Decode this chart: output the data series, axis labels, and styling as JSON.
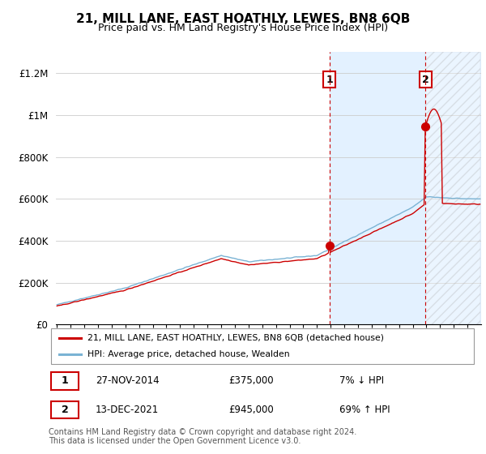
{
  "title": "21, MILL LANE, EAST HOATHLY, LEWES, BN8 6QB",
  "subtitle": "Price paid vs. HM Land Registry's House Price Index (HPI)",
  "footnote": "Contains HM Land Registry data © Crown copyright and database right 2024.\nThis data is licensed under the Open Government Licence v3.0.",
  "ylim": [
    0,
    1300000
  ],
  "yticks": [
    0,
    200000,
    400000,
    600000,
    800000,
    1000000,
    1200000
  ],
  "ytick_labels": [
    "£0",
    "£200K",
    "£400K",
    "£600K",
    "£800K",
    "£1M",
    "£1.2M"
  ],
  "x_start_year": 1995,
  "x_end_year": 2025,
  "hpi_color": "#7ab3d4",
  "price_color": "#cc0000",
  "shade_color": "#ddeeff",
  "transaction1": {
    "year_idx": 239,
    "price": 375000,
    "label": "1",
    "date": "27-NOV-2014",
    "amount": "£375,000",
    "note": "7% ↓ HPI"
  },
  "transaction2": {
    "year_idx": 323,
    "price": 945000,
    "label": "2",
    "date": "13-DEC-2021",
    "amount": "£945,000",
    "note": "69% ↑ HPI"
  },
  "legend_line1": "21, MILL LANE, EAST HOATHLY, LEWES, BN8 6QB (detached house)",
  "legend_line2": "HPI: Average price, detached house, Wealden"
}
